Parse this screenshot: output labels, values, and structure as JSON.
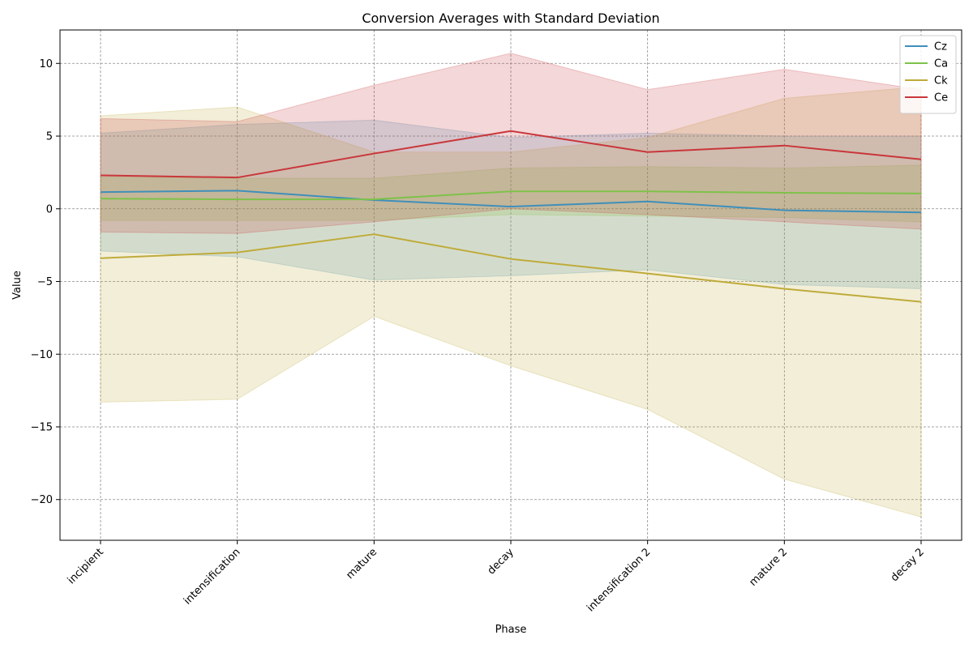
{
  "chart_data": {
    "type": "line",
    "title": "Conversion Averages with Standard Deviation",
    "xlabel": "Phase",
    "ylabel": "Value",
    "categories": [
      "incipient",
      "intensification",
      "mature",
      "decay",
      "intensification 2",
      "mature 2",
      "decay 2"
    ],
    "ylim": [
      -22.8,
      12.3
    ],
    "yticks": [
      -20,
      -15,
      -10,
      -5,
      0,
      5,
      10
    ],
    "ytick_labels": [
      "−20",
      "−15",
      "−10",
      "−5",
      "0",
      "5",
      "10"
    ],
    "grid": true,
    "legend_position": "top-right",
    "series": [
      {
        "name": "Cz",
        "color": "#3f8fba",
        "values": [
          1.15,
          1.25,
          0.6,
          0.15,
          0.5,
          -0.1,
          -0.25
        ],
        "upper": [
          5.2,
          5.8,
          6.1,
          4.9,
          5.2,
          5.0,
          5.0
        ],
        "lower": [
          -2.9,
          -3.3,
          -4.9,
          -4.6,
          -4.2,
          -5.2,
          -5.5
        ]
      },
      {
        "name": "Ca",
        "color": "#7ec24a",
        "values": [
          0.7,
          0.65,
          0.65,
          1.2,
          1.2,
          1.1,
          1.05
        ],
        "upper": [
          2.2,
          2.1,
          2.1,
          2.8,
          2.9,
          2.8,
          3.0
        ],
        "lower": [
          -0.8,
          -0.8,
          -0.8,
          -0.4,
          -0.5,
          -0.6,
          -0.9
        ]
      },
      {
        "name": "Ck",
        "color": "#bfab3a",
        "values": [
          -3.4,
          -3.0,
          -1.75,
          -3.45,
          -4.45,
          -5.5,
          -6.4
        ],
        "upper": [
          6.4,
          7.0,
          3.9,
          3.9,
          4.9,
          7.6,
          8.4
        ],
        "lower": [
          -13.3,
          -13.1,
          -7.4,
          -10.8,
          -13.8,
          -18.6,
          -21.2
        ]
      },
      {
        "name": "Ce",
        "color": "#c9363a",
        "values": [
          2.3,
          2.15,
          3.8,
          5.35,
          3.9,
          4.35,
          3.4
        ],
        "upper": [
          6.2,
          6.0,
          8.5,
          10.7,
          8.2,
          9.6,
          8.2
        ],
        "lower": [
          -1.6,
          -1.7,
          -0.9,
          0.0,
          -0.4,
          -0.9,
          -1.4
        ]
      }
    ]
  }
}
